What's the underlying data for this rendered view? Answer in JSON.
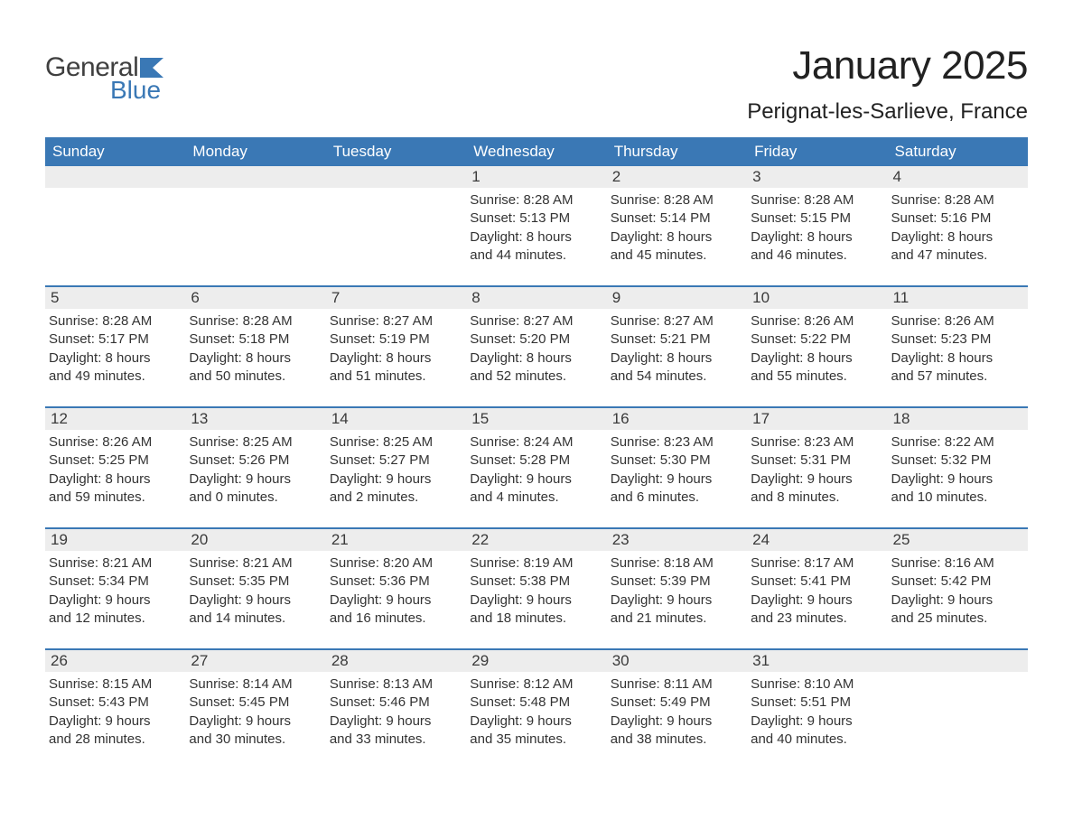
{
  "logo": {
    "general": "General",
    "blue": "Blue"
  },
  "title": "January 2025",
  "location": "Perignat-les-Sarlieve, France",
  "colors": {
    "header_bg": "#3a78b5",
    "header_text": "#ffffff",
    "daynum_bg": "#ededed",
    "body_text": "#333333",
    "rule": "#3a78b5",
    "page_bg": "#ffffff"
  },
  "days_of_week": [
    "Sunday",
    "Monday",
    "Tuesday",
    "Wednesday",
    "Thursday",
    "Friday",
    "Saturday"
  ],
  "weeks": [
    [
      null,
      null,
      null,
      {
        "n": "1",
        "sr": "Sunrise: 8:28 AM",
        "ss": "Sunset: 5:13 PM",
        "d1": "Daylight: 8 hours",
        "d2": "and 44 minutes."
      },
      {
        "n": "2",
        "sr": "Sunrise: 8:28 AM",
        "ss": "Sunset: 5:14 PM",
        "d1": "Daylight: 8 hours",
        "d2": "and 45 minutes."
      },
      {
        "n": "3",
        "sr": "Sunrise: 8:28 AM",
        "ss": "Sunset: 5:15 PM",
        "d1": "Daylight: 8 hours",
        "d2": "and 46 minutes."
      },
      {
        "n": "4",
        "sr": "Sunrise: 8:28 AM",
        "ss": "Sunset: 5:16 PM",
        "d1": "Daylight: 8 hours",
        "d2": "and 47 minutes."
      }
    ],
    [
      {
        "n": "5",
        "sr": "Sunrise: 8:28 AM",
        "ss": "Sunset: 5:17 PM",
        "d1": "Daylight: 8 hours",
        "d2": "and 49 minutes."
      },
      {
        "n": "6",
        "sr": "Sunrise: 8:28 AM",
        "ss": "Sunset: 5:18 PM",
        "d1": "Daylight: 8 hours",
        "d2": "and 50 minutes."
      },
      {
        "n": "7",
        "sr": "Sunrise: 8:27 AM",
        "ss": "Sunset: 5:19 PM",
        "d1": "Daylight: 8 hours",
        "d2": "and 51 minutes."
      },
      {
        "n": "8",
        "sr": "Sunrise: 8:27 AM",
        "ss": "Sunset: 5:20 PM",
        "d1": "Daylight: 8 hours",
        "d2": "and 52 minutes."
      },
      {
        "n": "9",
        "sr": "Sunrise: 8:27 AM",
        "ss": "Sunset: 5:21 PM",
        "d1": "Daylight: 8 hours",
        "d2": "and 54 minutes."
      },
      {
        "n": "10",
        "sr": "Sunrise: 8:26 AM",
        "ss": "Sunset: 5:22 PM",
        "d1": "Daylight: 8 hours",
        "d2": "and 55 minutes."
      },
      {
        "n": "11",
        "sr": "Sunrise: 8:26 AM",
        "ss": "Sunset: 5:23 PM",
        "d1": "Daylight: 8 hours",
        "d2": "and 57 minutes."
      }
    ],
    [
      {
        "n": "12",
        "sr": "Sunrise: 8:26 AM",
        "ss": "Sunset: 5:25 PM",
        "d1": "Daylight: 8 hours",
        "d2": "and 59 minutes."
      },
      {
        "n": "13",
        "sr": "Sunrise: 8:25 AM",
        "ss": "Sunset: 5:26 PM",
        "d1": "Daylight: 9 hours",
        "d2": "and 0 minutes."
      },
      {
        "n": "14",
        "sr": "Sunrise: 8:25 AM",
        "ss": "Sunset: 5:27 PM",
        "d1": "Daylight: 9 hours",
        "d2": "and 2 minutes."
      },
      {
        "n": "15",
        "sr": "Sunrise: 8:24 AM",
        "ss": "Sunset: 5:28 PM",
        "d1": "Daylight: 9 hours",
        "d2": "and 4 minutes."
      },
      {
        "n": "16",
        "sr": "Sunrise: 8:23 AM",
        "ss": "Sunset: 5:30 PM",
        "d1": "Daylight: 9 hours",
        "d2": "and 6 minutes."
      },
      {
        "n": "17",
        "sr": "Sunrise: 8:23 AM",
        "ss": "Sunset: 5:31 PM",
        "d1": "Daylight: 9 hours",
        "d2": "and 8 minutes."
      },
      {
        "n": "18",
        "sr": "Sunrise: 8:22 AM",
        "ss": "Sunset: 5:32 PM",
        "d1": "Daylight: 9 hours",
        "d2": "and 10 minutes."
      }
    ],
    [
      {
        "n": "19",
        "sr": "Sunrise: 8:21 AM",
        "ss": "Sunset: 5:34 PM",
        "d1": "Daylight: 9 hours",
        "d2": "and 12 minutes."
      },
      {
        "n": "20",
        "sr": "Sunrise: 8:21 AM",
        "ss": "Sunset: 5:35 PM",
        "d1": "Daylight: 9 hours",
        "d2": "and 14 minutes."
      },
      {
        "n": "21",
        "sr": "Sunrise: 8:20 AM",
        "ss": "Sunset: 5:36 PM",
        "d1": "Daylight: 9 hours",
        "d2": "and 16 minutes."
      },
      {
        "n": "22",
        "sr": "Sunrise: 8:19 AM",
        "ss": "Sunset: 5:38 PM",
        "d1": "Daylight: 9 hours",
        "d2": "and 18 minutes."
      },
      {
        "n": "23",
        "sr": "Sunrise: 8:18 AM",
        "ss": "Sunset: 5:39 PM",
        "d1": "Daylight: 9 hours",
        "d2": "and 21 minutes."
      },
      {
        "n": "24",
        "sr": "Sunrise: 8:17 AM",
        "ss": "Sunset: 5:41 PM",
        "d1": "Daylight: 9 hours",
        "d2": "and 23 minutes."
      },
      {
        "n": "25",
        "sr": "Sunrise: 8:16 AM",
        "ss": "Sunset: 5:42 PM",
        "d1": "Daylight: 9 hours",
        "d2": "and 25 minutes."
      }
    ],
    [
      {
        "n": "26",
        "sr": "Sunrise: 8:15 AM",
        "ss": "Sunset: 5:43 PM",
        "d1": "Daylight: 9 hours",
        "d2": "and 28 minutes."
      },
      {
        "n": "27",
        "sr": "Sunrise: 8:14 AM",
        "ss": "Sunset: 5:45 PM",
        "d1": "Daylight: 9 hours",
        "d2": "and 30 minutes."
      },
      {
        "n": "28",
        "sr": "Sunrise: 8:13 AM",
        "ss": "Sunset: 5:46 PM",
        "d1": "Daylight: 9 hours",
        "d2": "and 33 minutes."
      },
      {
        "n": "29",
        "sr": "Sunrise: 8:12 AM",
        "ss": "Sunset: 5:48 PM",
        "d1": "Daylight: 9 hours",
        "d2": "and 35 minutes."
      },
      {
        "n": "30",
        "sr": "Sunrise: 8:11 AM",
        "ss": "Sunset: 5:49 PM",
        "d1": "Daylight: 9 hours",
        "d2": "and 38 minutes."
      },
      {
        "n": "31",
        "sr": "Sunrise: 8:10 AM",
        "ss": "Sunset: 5:51 PM",
        "d1": "Daylight: 9 hours",
        "d2": "and 40 minutes."
      },
      null
    ]
  ]
}
